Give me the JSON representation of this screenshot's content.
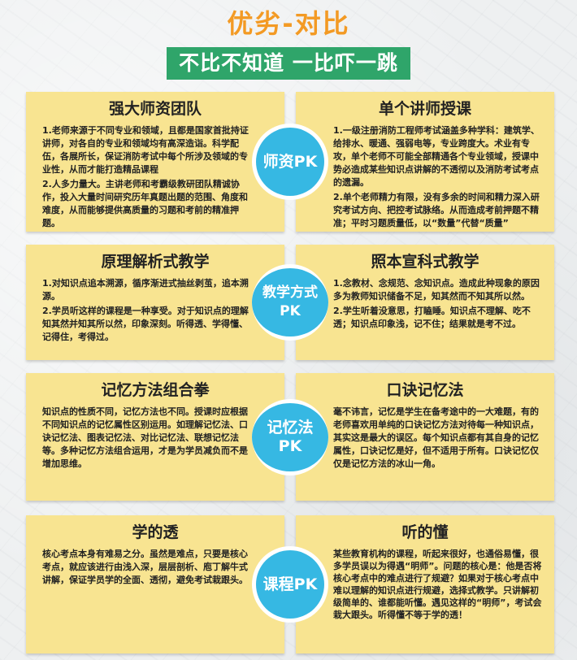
{
  "header": {
    "title": "优劣-对比",
    "subtitle": "不比不知道  一比吓一跳"
  },
  "sections": [
    {
      "badge": "师资PK",
      "left": {
        "title": "强大师资团队",
        "paragraphs": [
          "1.老师来源于不同专业和领域，且都是国家首批持证讲师，对各自的专业和领域均有高深造诣。科学配伍，各展所长，保证消防考试中每个所涉及领域的专业性，从而才能打造精品课程",
          "2.人多力量大。主讲老师和考霸级教研团队精诚协作，投入大量时间研究历年真题出题的范围、角度和难度，从而能够提供高质量的习题和考前的精准押题。"
        ]
      },
      "right": {
        "title": "单个讲师授课",
        "paragraphs": [
          "1.一级注册消防工程师考试涵盖多种学科：建筑学、给排水、暖通、强弱电等，专业跨度大。术业有专攻，单个老师不可能全部精通各个专业领域，授课中势必造成某些知识点讲解的不透彻以及消防考试考点的遗漏。",
          "2.单个老师精力有限，没有多余的时间和精力深入研究考试方向、把控考试脉络。从而造成考前押题不精准；平时习题质量低，以“数量”代替“质量”"
        ]
      }
    },
    {
      "badge": "教学方式PK",
      "left": {
        "title": "原理解析式教学",
        "paragraphs": [
          "1.对知识点追本溯源，循序渐进式抽丝剥茧，追本溯源。",
          "2.学员听这样的课程是一种享受。对于知识点的理解知其然并知其所以然，印象深刻。听得透、学得懂、记得住，考得过。"
        ]
      },
      "right": {
        "title": "照本宣科式教学",
        "paragraphs": [
          "1.念教材、念规范、念知识点。造成此种现象的原因多为教师知识储备不足，知其然而不知其所以然。",
          "2.学生听着没意思，打瞌睡。知识点不理解、吃不透；知识点印象浅，记不住；结果就是考不过。"
        ]
      }
    },
    {
      "badge": "记忆法PK",
      "left": {
        "title": "记忆方法组合拳",
        "paragraphs": [
          "知识点的性质不同，记忆方法也不同。授课时应根据不同知识点的记忆属性区别运用。如理解记忆法、口诀记忆法、图表记忆法、对比记忆法、联想记忆法等。多种记忆方法组合运用，才是为学员减负而不是增加思维。"
        ]
      },
      "right": {
        "title": "口诀记忆法",
        "paragraphs": [
          "毫不讳言，记忆是学生在备考途中的一大难题，有的老师喜欢用单纯的口诀记忆方法对待每一种知识点，其实这是最大的误区。每个知识点都有其自身的记忆属性，口诀记忆是好，但不适用于所有。口诀记忆仅仅是记忆方法的冰山一角。"
        ]
      }
    },
    {
      "badge": "课程PK",
      "left": {
        "title": "学的透",
        "paragraphs": [
          "核心考点本身有难易之分。虽然是难点，只要是核心考点，就应该进行由浅入深，层层剖析、庖丁解牛式讲解，保证学员学的全面、透彻，避免考试栽跟头。"
        ]
      },
      "right": {
        "title": "听的懂",
        "paragraphs": [
          "某些教育机构的课程，听起来很好，也通俗易懂，很多学员误以为得遇“明师”。问题的核心是：他是否将核心考点中的难点进行了规避？如果对于核心考点中难以理解的知识点进行规避，选择式教学。只讲解初级简单的、谁都能听懂。遇见这样的“明师”，考试会栽大跟头。听得懂不等于学的透！"
        ]
      }
    }
  ]
}
